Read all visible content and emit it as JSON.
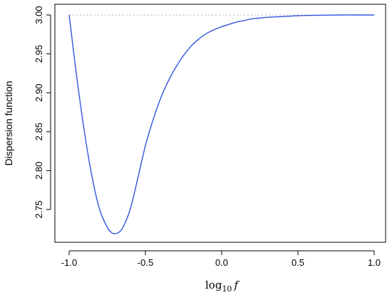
{
  "chart_data": {
    "type": "line",
    "title": "",
    "xlabel_base": "log",
    "xlabel_subscript": "10",
    "xlabel_var": "f",
    "ylabel": "Dispersion function",
    "xlim": [
      -1.0,
      1.0
    ],
    "ylim": [
      2.7,
      3.01
    ],
    "x_ticks": [
      "-1.0",
      "-0.5",
      "0.0",
      "0.5",
      "1.0"
    ],
    "y_ticks": [
      "2.75",
      "2.80",
      "2.85",
      "2.90",
      "2.95",
      "3.00"
    ],
    "series": [
      {
        "color": "#3355dd",
        "x": [
          -1.0,
          -0.95,
          -0.9,
          -0.85,
          -0.8,
          -0.75,
          -0.72,
          -0.7,
          -0.68,
          -0.65,
          -0.6,
          -0.55,
          -0.5,
          -0.45,
          -0.4,
          -0.35,
          -0.3,
          -0.25,
          -0.2,
          -0.15,
          -0.1,
          -0.05,
          0.0,
          0.05,
          0.1,
          0.15,
          0.2,
          0.25,
          0.3,
          0.4,
          0.5,
          0.6,
          0.7,
          0.8,
          0.9,
          1.0
        ],
        "y": [
          3.0,
          2.92,
          2.85,
          2.792,
          2.75,
          2.727,
          2.72,
          2.719,
          2.72,
          2.726,
          2.75,
          2.79,
          2.832,
          2.865,
          2.893,
          2.915,
          2.933,
          2.948,
          2.96,
          2.969,
          2.976,
          2.981,
          2.985,
          2.988,
          2.991,
          2.993,
          2.995,
          2.996,
          2.997,
          2.998,
          2.999,
          2.9995,
          2.9998,
          3.0,
          3.0,
          3.0
        ]
      }
    ],
    "reference_line": {
      "y": 3.0,
      "color": "#b0b0b0",
      "style": "dotted"
    }
  }
}
